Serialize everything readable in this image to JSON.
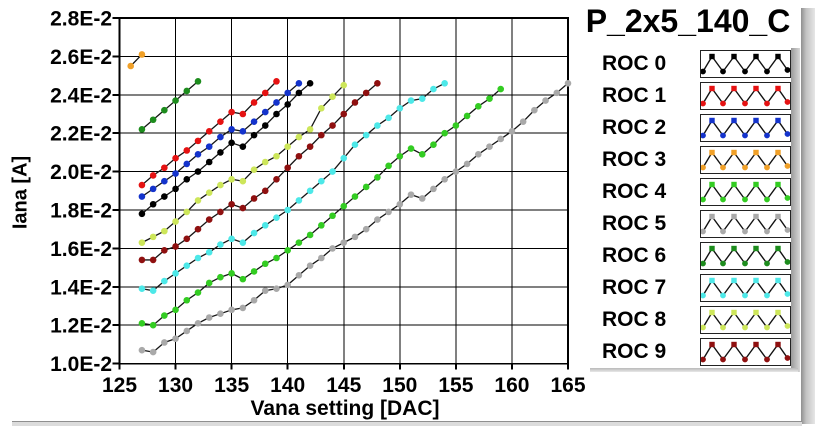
{
  "legend": {
    "title": "P_2x5_140_C",
    "items": [
      {
        "label": "ROC 0",
        "color": "#000000"
      },
      {
        "label": "ROC 1",
        "color": "#e51212"
      },
      {
        "label": "ROC 2",
        "color": "#1433cc"
      },
      {
        "label": "ROC 3",
        "color": "#f0a028"
      },
      {
        "label": "ROC 4",
        "color": "#33cc22"
      },
      {
        "label": "ROC 5",
        "color": "#a9a9a9"
      },
      {
        "label": "ROC 6",
        "color": "#1d8c1d"
      },
      {
        "label": "ROC 7",
        "color": "#4de8e8"
      },
      {
        "label": "ROC 8",
        "color": "#cde65a"
      },
      {
        "label": "ROC 9",
        "color": "#8f1010"
      }
    ]
  },
  "chart_data": {
    "type": "line",
    "title": "P_2x5_140_C",
    "xlabel": "Vana setting [DAC]",
    "ylabel": "Iana [A]",
    "xlim": [
      125,
      165
    ],
    "x_ticks": [
      125,
      130,
      135,
      140,
      145,
      150,
      155,
      160,
      165
    ],
    "y_unit": "values in 1E-2 A",
    "ylim_e2": [
      1.0,
      2.8
    ],
    "y_ticks_e2": [
      1.0,
      1.2,
      1.4,
      1.6,
      1.8,
      2.0,
      2.2,
      2.4,
      2.6,
      2.8
    ],
    "y_tick_labels": [
      "1.0E-2",
      "1.2E-2",
      "1.4E-2",
      "1.6E-2",
      "1.8E-2",
      "2.0E-2",
      "2.2E-2",
      "2.4E-2",
      "2.6E-2",
      "2.8E-2"
    ],
    "grid": true,
    "line_color": "#151515",
    "legend_position": "right",
    "series": [
      {
        "name": "ROC 0",
        "color": "#000000",
        "points": [
          [
            127,
            1.78
          ],
          [
            128,
            1.83
          ],
          [
            129,
            1.87
          ],
          [
            130,
            1.91
          ],
          [
            131,
            1.96
          ],
          [
            132,
            2.0
          ],
          [
            133,
            2.05
          ],
          [
            134,
            2.1
          ],
          [
            135,
            2.15
          ],
          [
            136,
            2.13
          ],
          [
            137,
            2.19
          ],
          [
            138,
            2.24
          ],
          [
            139,
            2.3
          ],
          [
            140,
            2.35
          ],
          [
            141,
            2.41
          ],
          [
            142,
            2.46
          ]
        ]
      },
      {
        "name": "ROC 1",
        "color": "#e51212",
        "points": [
          [
            127,
            1.93
          ],
          [
            128,
            1.98
          ],
          [
            129,
            2.02
          ],
          [
            130,
            2.07
          ],
          [
            131,
            2.11
          ],
          [
            132,
            2.16
          ],
          [
            133,
            2.21
          ],
          [
            134,
            2.26
          ],
          [
            135,
            2.31
          ],
          [
            136,
            2.3
          ],
          [
            137,
            2.36
          ],
          [
            138,
            2.41
          ],
          [
            139,
            2.47
          ]
        ]
      },
      {
        "name": "ROC 2",
        "color": "#1433cc",
        "points": [
          [
            127,
            1.87
          ],
          [
            128,
            1.91
          ],
          [
            129,
            1.95
          ],
          [
            130,
            1.99
          ],
          [
            131,
            2.04
          ],
          [
            132,
            2.09
          ],
          [
            133,
            2.13
          ],
          [
            134,
            2.18
          ],
          [
            135,
            2.22
          ],
          [
            136,
            2.21
          ],
          [
            137,
            2.26
          ],
          [
            138,
            2.31
          ],
          [
            139,
            2.36
          ],
          [
            140,
            2.41
          ],
          [
            141,
            2.46
          ]
        ]
      },
      {
        "name": "ROC 3",
        "color": "#f0a028",
        "points": [
          [
            126,
            2.55
          ],
          [
            127,
            2.61
          ]
        ]
      },
      {
        "name": "ROC 4",
        "color": "#33cc22",
        "points": [
          [
            127,
            1.21
          ],
          [
            128,
            1.2
          ],
          [
            129,
            1.25
          ],
          [
            130,
            1.28
          ],
          [
            131,
            1.33
          ],
          [
            132,
            1.37
          ],
          [
            133,
            1.42
          ],
          [
            134,
            1.45
          ],
          [
            135,
            1.47
          ],
          [
            136,
            1.44
          ],
          [
            137,
            1.48
          ],
          [
            138,
            1.52
          ],
          [
            139,
            1.55
          ],
          [
            140,
            1.59
          ],
          [
            141,
            1.63
          ],
          [
            142,
            1.67
          ],
          [
            143,
            1.72
          ],
          [
            144,
            1.77
          ],
          [
            145,
            1.82
          ],
          [
            146,
            1.87
          ],
          [
            147,
            1.92
          ],
          [
            148,
            1.97
          ],
          [
            149,
            2.03
          ],
          [
            150,
            2.08
          ],
          [
            151,
            2.12
          ],
          [
            152,
            2.09
          ],
          [
            153,
            2.14
          ],
          [
            154,
            2.2
          ],
          [
            155,
            2.24
          ],
          [
            156,
            2.29
          ],
          [
            157,
            2.34
          ],
          [
            158,
            2.38
          ],
          [
            159,
            2.43
          ]
        ]
      },
      {
        "name": "ROC 5",
        "color": "#a9a9a9",
        "points": [
          [
            127,
            1.07
          ],
          [
            128,
            1.06
          ],
          [
            129,
            1.11
          ],
          [
            130,
            1.13
          ],
          [
            131,
            1.17
          ],
          [
            132,
            1.21
          ],
          [
            133,
            1.24
          ],
          [
            134,
            1.26
          ],
          [
            135,
            1.28
          ],
          [
            136,
            1.29
          ],
          [
            137,
            1.33
          ],
          [
            138,
            1.38
          ],
          [
            139,
            1.39
          ],
          [
            140,
            1.41
          ],
          [
            141,
            1.46
          ],
          [
            142,
            1.51
          ],
          [
            143,
            1.55
          ],
          [
            144,
            1.6
          ],
          [
            145,
            1.63
          ],
          [
            146,
            1.66
          ],
          [
            147,
            1.7
          ],
          [
            148,
            1.75
          ],
          [
            149,
            1.79
          ],
          [
            150,
            1.83
          ],
          [
            151,
            1.88
          ],
          [
            152,
            1.86
          ],
          [
            153,
            1.91
          ],
          [
            154,
            1.96
          ],
          [
            155,
            2.0
          ],
          [
            156,
            2.04
          ],
          [
            157,
            2.09
          ],
          [
            158,
            2.13
          ],
          [
            159,
            2.17
          ],
          [
            160,
            2.21
          ],
          [
            161,
            2.26
          ],
          [
            162,
            2.32
          ],
          [
            163,
            2.37
          ],
          [
            164,
            2.41
          ],
          [
            165,
            2.46
          ]
        ]
      },
      {
        "name": "ROC 6",
        "color": "#1d8c1d",
        "points": [
          [
            127,
            2.22
          ],
          [
            128,
            2.27
          ],
          [
            129,
            2.32
          ],
          [
            130,
            2.37
          ],
          [
            131,
            2.42
          ],
          [
            132,
            2.47
          ]
        ]
      },
      {
        "name": "ROC 7",
        "color": "#4de8e8",
        "points": [
          [
            127,
            1.39
          ],
          [
            128,
            1.38
          ],
          [
            129,
            1.43
          ],
          [
            130,
            1.47
          ],
          [
            131,
            1.51
          ],
          [
            132,
            1.55
          ],
          [
            133,
            1.58
          ],
          [
            134,
            1.62
          ],
          [
            135,
            1.65
          ],
          [
            136,
            1.63
          ],
          [
            137,
            1.68
          ],
          [
            138,
            1.72
          ],
          [
            139,
            1.76
          ],
          [
            140,
            1.8
          ],
          [
            141,
            1.85
          ],
          [
            142,
            1.9
          ],
          [
            143,
            1.95
          ],
          [
            144,
            2.0
          ],
          [
            145,
            2.07
          ],
          [
            146,
            2.14
          ],
          [
            147,
            2.19
          ],
          [
            148,
            2.24
          ],
          [
            149,
            2.28
          ],
          [
            150,
            2.33
          ],
          [
            151,
            2.37
          ],
          [
            152,
            2.38
          ],
          [
            153,
            2.43
          ],
          [
            154,
            2.46
          ]
        ]
      },
      {
        "name": "ROC 8",
        "color": "#cde65a",
        "points": [
          [
            127,
            1.63
          ],
          [
            128,
            1.66
          ],
          [
            129,
            1.69
          ],
          [
            130,
            1.74
          ],
          [
            131,
            1.79
          ],
          [
            132,
            1.85
          ],
          [
            133,
            1.89
          ],
          [
            134,
            1.93
          ],
          [
            135,
            1.96
          ],
          [
            136,
            1.95
          ],
          [
            137,
            2.01
          ],
          [
            138,
            2.05
          ],
          [
            139,
            2.08
          ],
          [
            140,
            2.13
          ],
          [
            141,
            2.18
          ],
          [
            142,
            2.22
          ],
          [
            143,
            2.33
          ],
          [
            144,
            2.39
          ],
          [
            145,
            2.45
          ]
        ]
      },
      {
        "name": "ROC 9",
        "color": "#8f1010",
        "points": [
          [
            127,
            1.54
          ],
          [
            128,
            1.54
          ],
          [
            129,
            1.59
          ],
          [
            130,
            1.61
          ],
          [
            131,
            1.65
          ],
          [
            132,
            1.7
          ],
          [
            133,
            1.75
          ],
          [
            134,
            1.79
          ],
          [
            135,
            1.83
          ],
          [
            136,
            1.81
          ],
          [
            137,
            1.86
          ],
          [
            138,
            1.9
          ],
          [
            139,
            1.96
          ],
          [
            140,
            2.02
          ],
          [
            141,
            2.08
          ],
          [
            142,
            2.13
          ],
          [
            143,
            2.19
          ],
          [
            144,
            2.24
          ],
          [
            145,
            2.3
          ],
          [
            146,
            2.36
          ],
          [
            147,
            2.41
          ],
          [
            148,
            2.46
          ]
        ]
      }
    ]
  }
}
